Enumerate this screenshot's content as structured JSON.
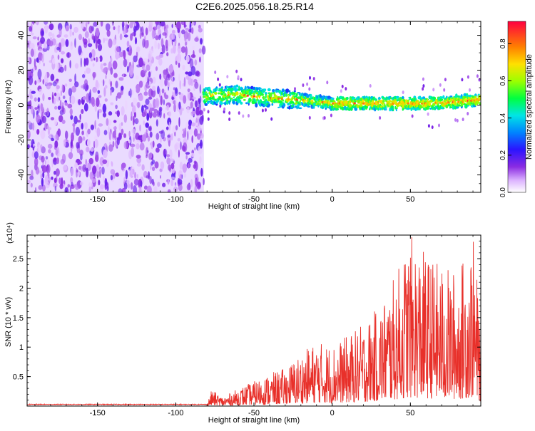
{
  "title": "C2E6.2025.056.18.25.R14",
  "chart_data": [
    {
      "type": "heatmap",
      "xlabel": "Height of straight line (km)",
      "ylabel": "Frequency (Hz)",
      "xlim": [
        -195,
        95
      ],
      "ylim": [
        -50,
        48
      ],
      "x_ticks": [
        -150,
        -100,
        -50,
        0,
        50
      ],
      "y_ticks": [
        -40,
        -20,
        0,
        20,
        40
      ],
      "colorbar": {
        "label": "Normalized spectral amplitude",
        "range": [
          0,
          0.92
        ],
        "ticks": [
          0.0,
          0.2,
          0.4,
          0.6,
          0.8
        ],
        "tick_labels": [
          "0.0",
          "0.2",
          "0.4",
          "0.6",
          "0.8"
        ]
      },
      "noise_region_x": [
        -195,
        -82
      ],
      "signal_band": {
        "x": [
          -82,
          -60,
          -40,
          -20,
          0,
          20,
          40,
          60,
          80,
          95
        ],
        "freq_hz": [
          5,
          6,
          4,
          3,
          1,
          1,
          1,
          1,
          2,
          3
        ]
      }
    },
    {
      "type": "line",
      "xlabel": "Height of straight line (km)",
      "ylabel": "SNR (10 * v/v)",
      "y_multiplier": "(x10⁴)",
      "xlim": [
        -195,
        95
      ],
      "ylim": [
        0,
        2.9
      ],
      "x_ticks": [
        -150,
        -100,
        -50,
        0,
        50
      ],
      "y_ticks": [
        0.5,
        1.0,
        1.5,
        2.0,
        2.5
      ],
      "series": [
        {
          "color": "#e8302a",
          "envelope_x": [
            -195,
            -80,
            -77,
            -70,
            -60,
            -50,
            -40,
            -30,
            -20,
            -10,
            0,
            10,
            20,
            30,
            40,
            50,
            60,
            70,
            80,
            90,
            95
          ],
          "envelope_y": [
            0.02,
            0.03,
            0.28,
            0.15,
            0.3,
            0.42,
            0.55,
            0.65,
            0.9,
            1.1,
            1.05,
            1.2,
            1.4,
            1.7,
            2.2,
            2.9,
            2.6,
            2.4,
            2.3,
            2.9,
            1.5
          ]
        }
      ]
    }
  ]
}
